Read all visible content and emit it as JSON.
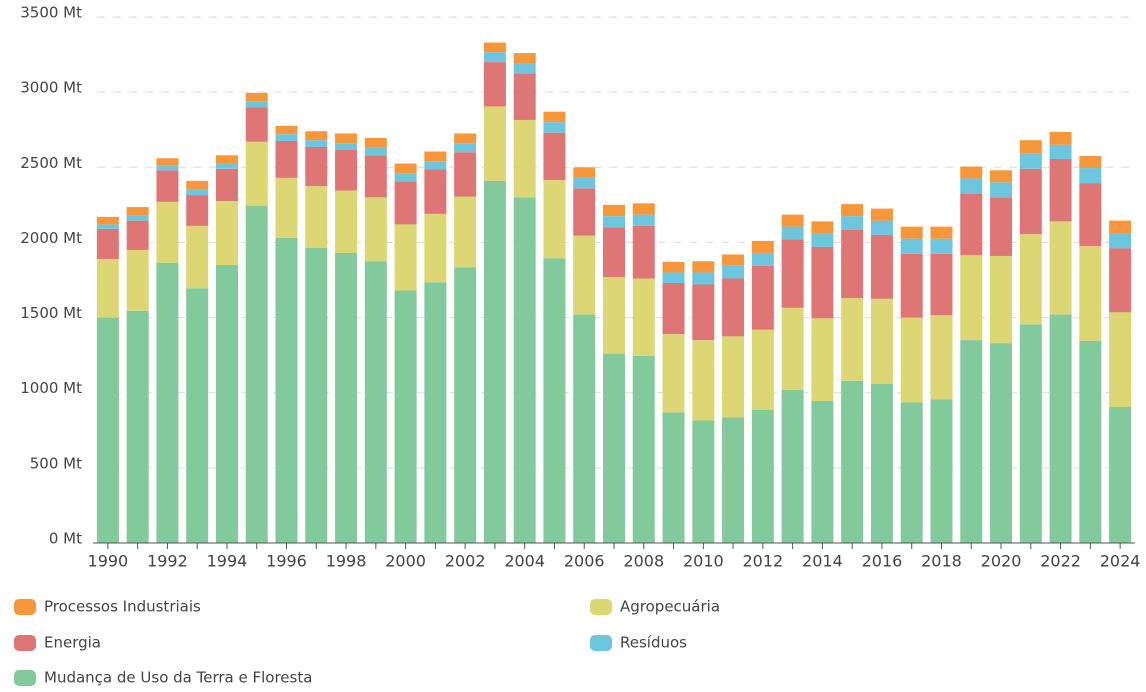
{
  "chart_data": {
    "type": "stacked-bar",
    "categories": [
      "1990",
      null,
      "1992",
      null,
      "1994",
      null,
      "1996",
      null,
      "1998",
      null,
      "2000",
      null,
      "2002",
      null,
      "2004",
      null,
      "2006",
      null,
      "2008",
      null,
      "2010",
      null,
      "2012",
      null,
      "2014",
      null,
      "2016",
      null,
      "2018",
      null,
      "2020",
      null,
      "2022",
      null,
      "2024"
    ],
    "series": [
      {
        "name": "Mudança de Uso da Terra e Floresta",
        "color": "#82c99b",
        "values": [
          1500,
          1545,
          1865,
          1695,
          1850,
          2245,
          2030,
          1965,
          1930,
          1875,
          1680,
          1735,
          1835,
          2410,
          2300,
          1895,
          1520,
          1260,
          1245,
          870,
          815,
          835,
          885,
          1020,
          945,
          1080,
          1060,
          935,
          955,
          1350,
          1330,
          1455,
          1520,
          1345,
          905
        ]
      },
      {
        "name": "Agropecuária",
        "color": "#dcd774",
        "values": [
          390,
          405,
          405,
          415,
          425,
          425,
          400,
          410,
          415,
          425,
          440,
          455,
          470,
          495,
          515,
          520,
          525,
          510,
          515,
          520,
          535,
          540,
          535,
          545,
          550,
          550,
          565,
          565,
          560,
          565,
          580,
          600,
          620,
          630,
          630
        ]
      },
      {
        "name": "Energia",
        "color": "#de7676",
        "values": [
          200,
          195,
          210,
          205,
          215,
          230,
          245,
          260,
          270,
          280,
          285,
          295,
          295,
          295,
          310,
          315,
          315,
          330,
          350,
          340,
          370,
          385,
          425,
          455,
          475,
          455,
          425,
          425,
          410,
          410,
          390,
          435,
          415,
          420,
          425
        ]
      },
      {
        "name": "Resíduos",
        "color": "#6ec6de",
        "values": [
          30,
          35,
          30,
          35,
          35,
          40,
          45,
          45,
          45,
          50,
          55,
          55,
          60,
          65,
          65,
          70,
          70,
          75,
          75,
          70,
          80,
          85,
          85,
          85,
          90,
          90,
          95,
          100,
          100,
          100,
          100,
          100,
          95,
          100,
          100
        ]
      },
      {
        "name": "Processos Industriais",
        "color": "#f5973a",
        "values": [
          50,
          55,
          50,
          60,
          55,
          55,
          55,
          60,
          65,
          65,
          65,
          65,
          65,
          65,
          70,
          70,
          70,
          75,
          75,
          70,
          75,
          75,
          80,
          80,
          80,
          80,
          80,
          80,
          80,
          80,
          80,
          90,
          85,
          80,
          85
        ]
      }
    ],
    "ylim": [
      0,
      3500
    ],
    "yticks": [
      {
        "value": 0,
        "label": "0 Mt"
      },
      {
        "value": 500,
        "label": "500 Mt"
      },
      {
        "value": 1000,
        "label": "1000 Mt"
      },
      {
        "value": 1500,
        "label": "1500 Mt"
      },
      {
        "value": 2000,
        "label": "2000 Mt"
      },
      {
        "value": 2500,
        "label": "2500 Mt"
      },
      {
        "value": 3000,
        "label": "3000 Mt"
      },
      {
        "value": 3500,
        "label": "3500 Mt"
      }
    ],
    "grid": true
  }
}
